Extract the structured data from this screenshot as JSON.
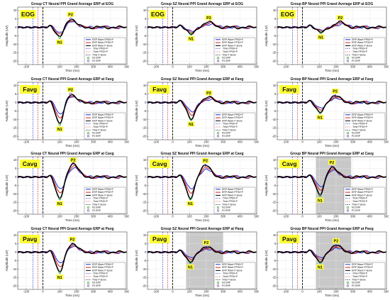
{
  "chart_data": {
    "type": "line",
    "layout": "grid 4 rows x 3 columns",
    "xlabel": "Time (ms)",
    "ylabel": "Amplitude (uV)",
    "xlim": [
      -150,
      500
    ],
    "ylim": [
      -22,
      12
    ],
    "xticks": [
      -100,
      0,
      100,
      200,
      300,
      400,
      500
    ],
    "yticks": [
      10,
      5,
      0,
      -5,
      -10,
      -15,
      -20
    ],
    "grid": true,
    "legend_position": "lower-right",
    "legend_entries": [
      "ERP Wave PP60+P",
      "ERP Wave PP30+P",
      "ERP Wave P alone",
      "-Time PP60+P",
      "-Time PP30+P",
      "Time P alone",
      "N1 ERP",
      "P2 ERP"
    ],
    "series_colors": {
      "PP60+P": "#1f2bd6",
      "PP30+P": "#d62020",
      "P alone": "#000000"
    },
    "peak_labels": [
      "N1",
      "P2"
    ],
    "panels": [
      {
        "title": "Group CT Neural PPI Grand Average ERP at EOG",
        "site": "EOG",
        "n1": {
          "x": 100,
          "y": -6
        },
        "p2": {
          "x": 165,
          "y": 5
        },
        "shade": null
      },
      {
        "title": "Group SZ Neural PPI Grand Average ERP at EOG",
        "site": "EOG",
        "n1": {
          "x": 110,
          "y": -4
        },
        "p2": {
          "x": 215,
          "y": 3
        },
        "shade": null
      },
      {
        "title": "Group BP Neural PPI Grand Average ERP at EOG",
        "site": "EOG",
        "n1": {
          "x": 110,
          "y": -3
        },
        "p2": {
          "x": 225,
          "y": 3
        },
        "shade": null
      },
      {
        "title": "Group CT Neural PPI Grand Average ERP at Favg",
        "site": "Favg",
        "n1": {
          "x": 100,
          "y": -13
        },
        "p2": {
          "x": 165,
          "y": 5
        },
        "shade": null
      },
      {
        "title": "Group SZ Neural PPI Grand Average ERP at Favg",
        "site": "Favg",
        "n1": {
          "x": 110,
          "y": -10
        },
        "p2": {
          "x": 215,
          "y": 3
        },
        "shade": null
      },
      {
        "title": "Group BP Neural PPI Grand Average ERP at Favg",
        "site": "Favg",
        "n1": {
          "x": 105,
          "y": -6
        },
        "p2": {
          "x": 195,
          "y": 4
        },
        "shade": null
      },
      {
        "title": "Group CT Neural PPI Grand Average ERP at Cavg",
        "site": "Cavg",
        "n1": {
          "x": 100,
          "y": -13
        },
        "p2": {
          "x": 180,
          "y": 8
        },
        "shade": null
      },
      {
        "title": "Group SZ Neural PPI Grand Average ERP at Cavg",
        "site": "Cavg",
        "n1": {
          "x": 105,
          "y": -13
        },
        "p2": {
          "x": 195,
          "y": 7
        },
        "shade": null
      },
      {
        "title": "Group BP Neural PPI Grand Average ERP at Cavg",
        "site": "Cavg",
        "n1": {
          "x": 105,
          "y": -11
        },
        "p2": {
          "x": 175,
          "y": 6
        },
        "shade": [
          80,
          290
        ]
      },
      {
        "title": "Group CT Neural PPI Grand Average ERP at Pavg",
        "site": "Pavg",
        "n1": {
          "x": 100,
          "y": -12
        },
        "p2": {
          "x": 175,
          "y": 5
        },
        "shade": null
      },
      {
        "title": "Group SZ Neural PPI Grand Average ERP at Pavg",
        "site": "Pavg",
        "n1": {
          "x": 105,
          "y": -6
        },
        "p2": {
          "x": 200,
          "y": 3
        },
        "shade": [
          80,
          300
        ]
      },
      {
        "title": "Group BP Neural PPI Grand Average ERP at Pavg",
        "site": "Pavg",
        "n1": {
          "x": 105,
          "y": -6
        },
        "p2": {
          "x": 200,
          "y": 4
        },
        "shade": [
          80,
          290
        ]
      }
    ]
  }
}
